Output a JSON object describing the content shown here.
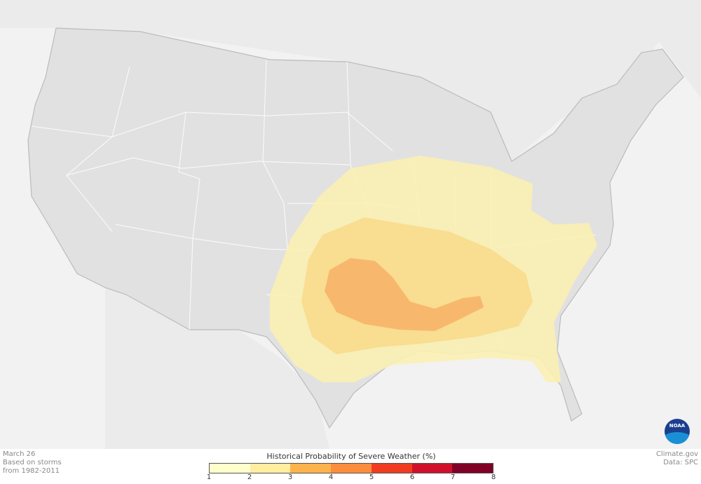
{
  "caption": {
    "date": "March 26",
    "line2": "Based on storms",
    "line3": "from 1982-2011"
  },
  "credit": {
    "site": "Climate.gov",
    "source": "Data: SPC"
  },
  "logo": {
    "text": "NOAA"
  },
  "legend": {
    "title": "Historical Probability of Severe Weather (%)",
    "ticks": [
      "1",
      "2",
      "3",
      "4",
      "5",
      "6",
      "7",
      "8"
    ],
    "colors": [
      "#ffffcc",
      "#ffeda0",
      "#feb24c",
      "#fd8d3c",
      "#f03b20",
      "#d0102a",
      "#800026"
    ]
  },
  "map": {
    "background": "#f2f2f2",
    "land_color": "#e1e1e1",
    "probability_zones": [
      {
        "range": "1-2",
        "color": "#fbefb3"
      },
      {
        "range": "2-3",
        "color": "#f8da8c"
      },
      {
        "range": "3-4",
        "color": "#f6b469"
      }
    ]
  }
}
